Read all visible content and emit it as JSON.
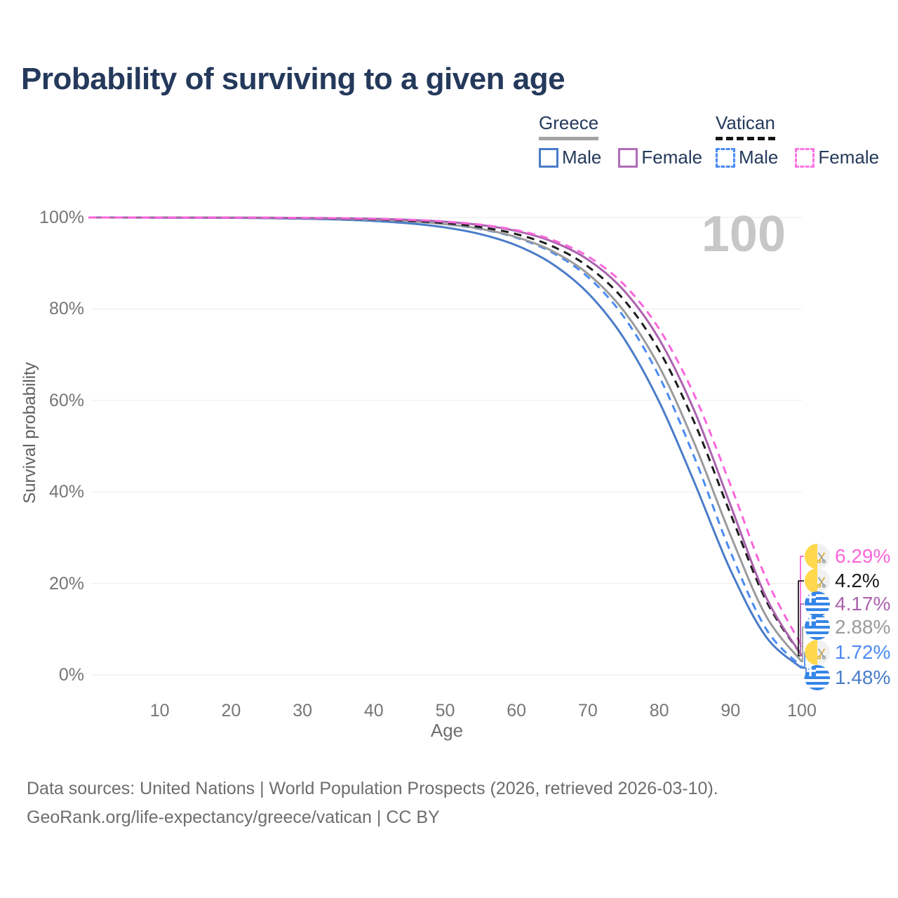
{
  "page": {
    "watermark": "100"
  },
  "legend": {
    "groups": [
      {
        "name": "Greece",
        "underline_style": "solid",
        "underline_color": "#a3a3a3",
        "items": [
          {
            "label": "Male",
            "swatch_color": "#4a7cc9",
            "dashed": false
          },
          {
            "label": "Female",
            "swatch_color": "#b06cb8",
            "dashed": false
          }
        ]
      },
      {
        "name": "Vatican",
        "underline_style": "dashed",
        "underline_color": "#151515",
        "items": [
          {
            "label": "Male",
            "swatch_color": "#4b8bf4",
            "dashed": true
          },
          {
            "label": "Female",
            "swatch_color": "#fb74e2",
            "dashed": true
          }
        ]
      }
    ]
  },
  "chart_data": {
    "type": "line",
    "title": "Probability of surviving to a given age",
    "xlabel": "Age",
    "ylabel": "Survival probability",
    "xlim": [
      0,
      100
    ],
    "ylim": [
      0,
      100
    ],
    "grid": "horizontal",
    "x_ticks": [
      10,
      20,
      30,
      40,
      50,
      60,
      70,
      80,
      90,
      100
    ],
    "y_ticks": [
      {
        "label": "100%",
        "value": 100
      },
      {
        "label": "80%",
        "value": 80
      },
      {
        "label": "60%",
        "value": 60
      },
      {
        "label": "40%",
        "value": 40
      },
      {
        "label": "20%",
        "value": 20
      },
      {
        "label": "0%",
        "value": 0
      }
    ],
    "x": [
      0,
      5,
      10,
      15,
      20,
      25,
      30,
      35,
      40,
      45,
      50,
      55,
      60,
      65,
      70,
      75,
      80,
      85,
      90,
      95,
      100
    ],
    "series": [
      {
        "name": "Greece Male",
        "country": "greece",
        "color": "#4a7cc9",
        "dashed": false,
        "end_label": "1.48%",
        "values": [
          100,
          99.99,
          99.98,
          99.96,
          99.92,
          99.85,
          99.74,
          99.56,
          99.24,
          98.71,
          97.82,
          96.34,
          93.89,
          89.88,
          83.49,
          73.71,
          59.71,
          41.81,
          22.9,
          8.28,
          1.48
        ]
      },
      {
        "name": "Vatican Male",
        "country": "vatican",
        "color": "#4b8bf4",
        "dashed": true,
        "end_label": "1.72%",
        "values": [
          100,
          100,
          99.99,
          99.98,
          99.95,
          99.92,
          99.85,
          99.73,
          99.52,
          99.16,
          98.53,
          97.44,
          95.56,
          92.35,
          87,
          78.36,
          65.25,
          47.29,
          26.89,
          10,
          1.72
        ]
      },
      {
        "name": "Greece Both sexes",
        "country": "greece",
        "color": "#9b9b9b",
        "dashed": false,
        "end_label": "2.88%",
        "values": [
          100,
          100,
          99.99,
          99.97,
          99.95,
          99.91,
          99.84,
          99.73,
          99.52,
          99.17,
          98.55,
          97.51,
          95.71,
          92.69,
          87.7,
          79.65,
          67.43,
          50.36,
          30.54,
          12.8,
          2.88
        ]
      },
      {
        "name": "Vatican Both sexes",
        "country": "vatican",
        "color": "#1c1c1c",
        "dashed": true,
        "end_label": "4.2%",
        "values": [
          100,
          100,
          99.99,
          99.98,
          99.96,
          99.93,
          99.87,
          99.77,
          99.6,
          99.3,
          98.79,
          97.89,
          96.36,
          93.73,
          89.3,
          82.1,
          70.91,
          54.93,
          35.19,
          16.2,
          4.2
        ]
      },
      {
        "name": "Greece Female",
        "country": "greece",
        "color": "#ab63ae",
        "dashed": false,
        "end_label": "4.17%",
        "values": [
          100,
          100,
          99.99,
          99.99,
          99.97,
          99.95,
          99.91,
          99.84,
          99.71,
          99.48,
          99.07,
          98.34,
          97.04,
          94.76,
          90.8,
          84.13,
          73.39,
          57.46,
          37.08,
          16.92,
          4.17
        ]
      },
      {
        "name": "Vatican Female",
        "country": "vatican",
        "color": "#fb66dc",
        "dashed": true,
        "end_label": "6.29%",
        "values": [
          100,
          100,
          99.99,
          99.99,
          99.97,
          99.95,
          99.91,
          99.84,
          99.72,
          99.5,
          99.11,
          98.42,
          97.22,
          95.12,
          91.5,
          85.42,
          75.62,
          60.91,
          41.51,
          21.03,
          6.29
        ]
      }
    ],
    "end_labels_order": [
      "Vatican Female",
      "Vatican Both sexes",
      "Greece Female",
      "Greece Both sexes",
      "Vatican Male",
      "Greece Male"
    ]
  },
  "footer": {
    "line1": "Data sources: United Nations | World Population Prospects (2026, retrieved 2026-03-10).",
    "line2": "GeoRank.org/life-expectancy/greece/vatican | CC BY"
  }
}
